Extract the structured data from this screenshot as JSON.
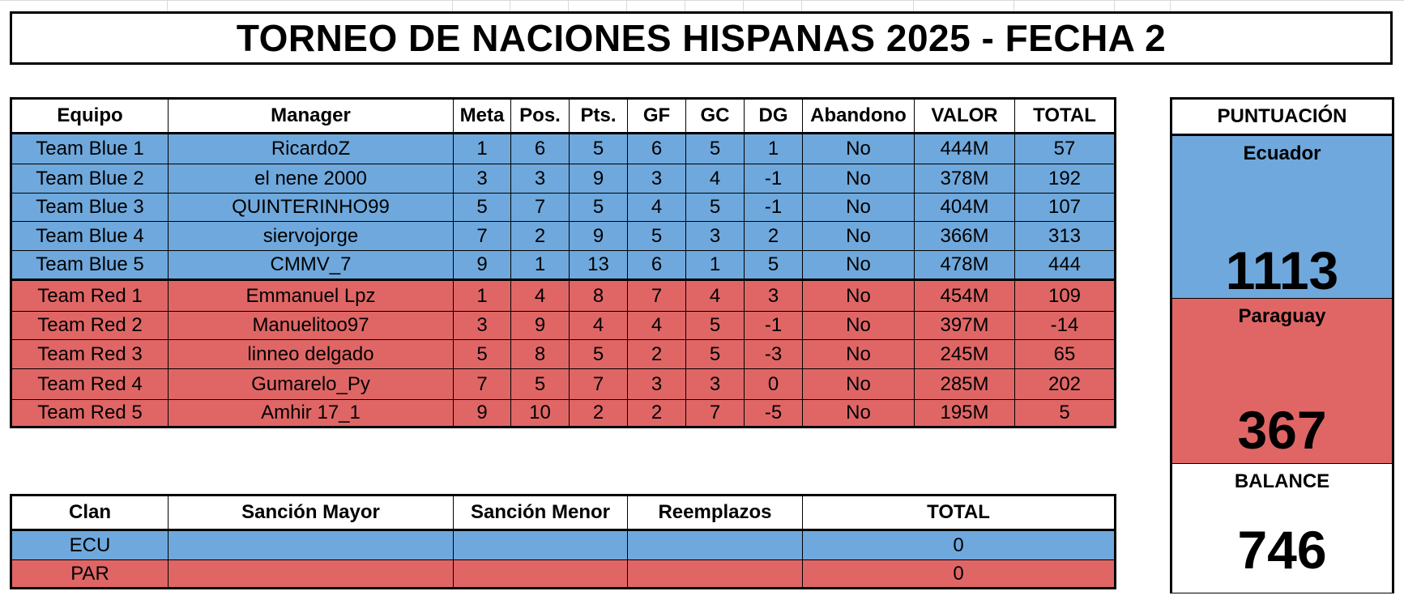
{
  "title": "TORNEO DE NACIONES HISPANAS 2025 - FECHA 2",
  "main_table": {
    "headers": [
      "Equipo",
      "Manager",
      "Meta",
      "Pos.",
      "Pts.",
      "GF",
      "GC",
      "DG",
      "Abandono",
      "VALOR",
      "TOTAL"
    ],
    "rows": [
      {
        "team": "blue",
        "cells": [
          "Team Blue 1",
          "RicardoZ",
          "1",
          "6",
          "5",
          "6",
          "5",
          "1",
          "No",
          "444M",
          "57"
        ]
      },
      {
        "team": "blue",
        "cells": [
          "Team Blue 2",
          "el nene 2000",
          "3",
          "3",
          "9",
          "3",
          "4",
          "-1",
          "No",
          "378M",
          "192"
        ]
      },
      {
        "team": "blue",
        "cells": [
          "Team Blue 3",
          "QUINTERINHO99",
          "5",
          "7",
          "5",
          "4",
          "5",
          "-1",
          "No",
          "404M",
          "107"
        ]
      },
      {
        "team": "blue",
        "cells": [
          "Team Blue 4",
          "siervojorge",
          "7",
          "2",
          "9",
          "5",
          "3",
          "2",
          "No",
          "366M",
          "313"
        ]
      },
      {
        "team": "blue",
        "cells": [
          "Team Blue 5",
          "CMMV_7",
          "9",
          "1",
          "13",
          "6",
          "1",
          "5",
          "No",
          "478M",
          "444"
        ]
      },
      {
        "team": "red",
        "cells": [
          "Team Red 1",
          "Emmanuel Lpz",
          "1",
          "4",
          "8",
          "7",
          "4",
          "3",
          "No",
          "454M",
          "109"
        ]
      },
      {
        "team": "red",
        "cells": [
          "Team Red 2",
          "Manuelitoo97",
          "3",
          "9",
          "4",
          "4",
          "5",
          "-1",
          "No",
          "397M",
          "-14"
        ]
      },
      {
        "team": "red",
        "cells": [
          "Team Red 3",
          "linneo delgado",
          "5",
          "8",
          "5",
          "2",
          "5",
          "-3",
          "No",
          "245M",
          "65"
        ]
      },
      {
        "team": "red",
        "cells": [
          "Team Red 4",
          "Gumarelo_Py",
          "7",
          "5",
          "7",
          "3",
          "3",
          "0",
          "No",
          "285M",
          "202"
        ]
      },
      {
        "team": "red",
        "cells": [
          "Team Red 5",
          "Amhir 17_1",
          "9",
          "10",
          "2",
          "2",
          "7",
          "-5",
          "No",
          "195M",
          "5"
        ]
      }
    ]
  },
  "sanctions_table": {
    "headers": [
      "Clan",
      "Sanción Mayor",
      "Sanción Menor",
      "Reemplazos",
      "TOTAL"
    ],
    "rows": [
      {
        "team": "blue",
        "cells": [
          "ECU",
          "",
          "",
          "",
          "0"
        ]
      },
      {
        "team": "red",
        "cells": [
          "PAR",
          "",
          "",
          "",
          "0"
        ]
      }
    ]
  },
  "score_panel": {
    "header": "PUNTUACIÓN",
    "ecuador_label": "Ecuador",
    "ecuador_score": "1113",
    "paraguay_label": "Paraguay",
    "paraguay_score": "367",
    "balance_label": "BALANCE",
    "balance_value": "746"
  },
  "colors": {
    "blue": "#6fa8dc",
    "red": "#e06666"
  }
}
